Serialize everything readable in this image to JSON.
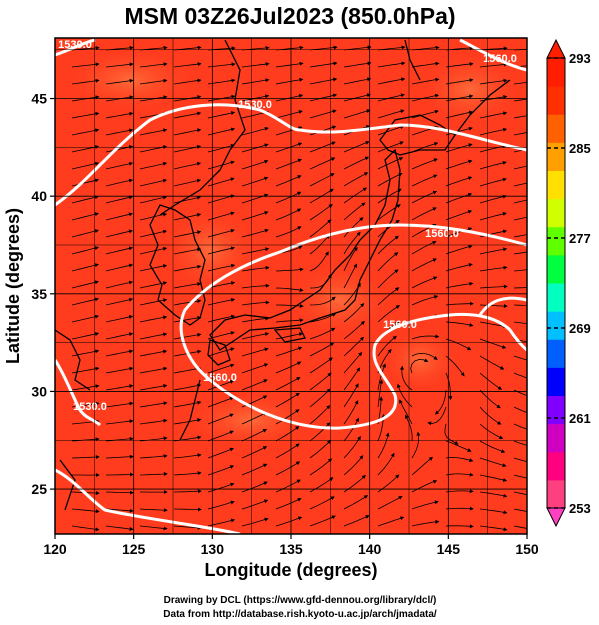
{
  "title": "MSM 03Z26Jul2023 (850.0hPa)",
  "xlabel": "Longitude (degrees)",
  "ylabel": "Latitude  (degrees)",
  "x_ticks": [
    "120",
    "125",
    "130",
    "135",
    "140",
    "145",
    "150"
  ],
  "y_ticks": [
    "25",
    "30",
    "35",
    "40",
    "45"
  ],
  "colorbar": {
    "ticks": [
      "293",
      "285",
      "277",
      "269",
      "261",
      "253"
    ],
    "max": 293,
    "min": 253,
    "colors": [
      "#ff4080",
      "#ff0080",
      "#d000c0",
      "#8000ff",
      "#0000ff",
      "#0060ff",
      "#00c0ff",
      "#00ffc0",
      "#00ff40",
      "#60ff00",
      "#d0ff00",
      "#ffe000",
      "#ffa000",
      "#ff6000",
      "#ff3000",
      "#ff1e00"
    ]
  },
  "contours": {
    "labels": [
      "1530.0",
      "1560.0",
      "1560.0",
      "1560.0",
      "1530.0",
      "1560.0",
      "1530.0"
    ]
  },
  "credits": {
    "line1": "Drawing by DCL (https://www.gfd-dennou.org/library/dcl/)",
    "line2": "Data from http://database.rish.kyoto-u.ac.jp/arch/jmadata/"
  }
}
